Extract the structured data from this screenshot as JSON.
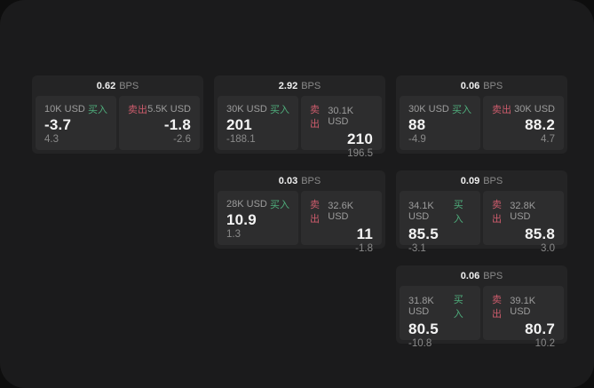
{
  "labels": {
    "bps_unit": "BPS",
    "buy": "买入",
    "sell": "卖出"
  },
  "colors": {
    "buy_green": "#4fae7c",
    "sell_red": "#cd5c6c",
    "container_bg": "#1b1b1c",
    "card_bg": "#242425",
    "panel_bg": "#2d2d2e"
  },
  "cards": [
    {
      "bps": "0.62",
      "buy": {
        "size": "10K USD",
        "value": "-3.7",
        "delta": "4.3"
      },
      "sell": {
        "size": "5.5K USD",
        "value": "-1.8",
        "delta": "-2.6"
      }
    },
    {
      "bps": "2.92",
      "buy": {
        "size": "30K USD",
        "value": "201",
        "delta": "-188.1"
      },
      "sell": {
        "size": "30.1K USD",
        "value": "210",
        "delta": "196.5"
      }
    },
    {
      "bps": "0.06",
      "buy": {
        "size": "30K USD",
        "value": "88",
        "delta": "-4.9"
      },
      "sell": {
        "size": "30K USD",
        "value": "88.2",
        "delta": "4.7"
      }
    },
    {
      "bps": "0.03",
      "buy": {
        "size": "28K USD",
        "value": "10.9",
        "delta": "1.3"
      },
      "sell": {
        "size": "32.6K USD",
        "value": "11",
        "delta": "-1.8"
      }
    },
    {
      "bps": "0.09",
      "buy": {
        "size": "34.1K USD",
        "value": "85.5",
        "delta": "-3.1"
      },
      "sell": {
        "size": "32.8K USD",
        "value": "85.8",
        "delta": "3.0"
      }
    },
    {
      "bps": "0.06",
      "buy": {
        "size": "31.8K USD",
        "value": "80.5",
        "delta": "-10.8"
      },
      "sell": {
        "size": "39.1K USD",
        "value": "80.7",
        "delta": "10.2"
      }
    }
  ]
}
